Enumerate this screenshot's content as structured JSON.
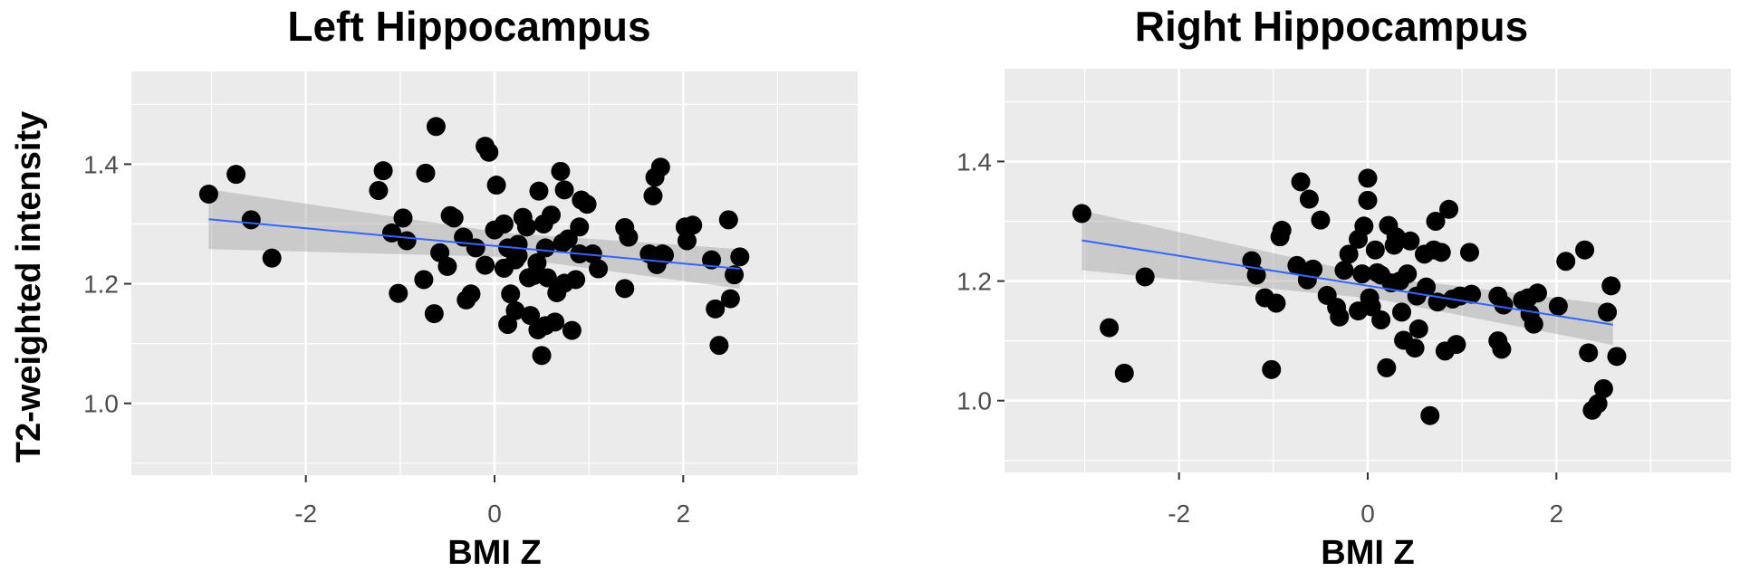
{
  "chart_data": [
    {
      "type": "scatter",
      "title": "Left Hippocampus",
      "xlabel": "BMI Z",
      "ylabel": "T2-weighted intensity",
      "xlim": [
        -3.85,
        3.85
      ],
      "ylim": [
        0.88,
        1.555
      ],
      "xticks": [
        -2,
        0,
        2
      ],
      "xtick_labels": [
        "-2",
        "0",
        "2"
      ],
      "yticks": [
        1.0,
        1.2,
        1.4
      ],
      "ytick_labels": [
        "1.0",
        "1.2",
        "1.4"
      ],
      "grid": true,
      "colors": {
        "points": "#000000",
        "fit_line": "#3366ff",
        "ci_band": "#999999",
        "panel_bg": "#ebebeb"
      },
      "fit": {
        "x": [
          -3.03,
          2.6
        ],
        "y": [
          1.308,
          1.225
        ]
      },
      "ci": {
        "x": [
          -3.03,
          0.1,
          2.6
        ],
        "upper": [
          1.358,
          1.285,
          1.258
        ],
        "lower": [
          1.258,
          1.245,
          1.192
        ]
      },
      "points": {
        "x": [
          -3.03,
          -2.74,
          -2.58,
          -2.36,
          -1.23,
          -1.18,
          -1.09,
          -1.02,
          -0.97,
          -0.93,
          -0.75,
          -0.73,
          -0.64,
          -0.62,
          -0.58,
          -0.5,
          -0.47,
          -0.43,
          -0.33,
          -0.3,
          -0.25,
          -0.2,
          -0.1,
          -0.1,
          -0.06,
          0.0,
          0.02,
          0.1,
          0.1,
          0.14,
          0.14,
          0.17,
          0.22,
          0.22,
          0.25,
          0.25,
          0.3,
          0.34,
          0.36,
          0.38,
          0.42,
          0.45,
          0.46,
          0.47,
          0.5,
          0.52,
          0.54,
          0.54,
          0.56,
          0.6,
          0.64,
          0.66,
          0.7,
          0.72,
          0.74,
          0.74,
          0.78,
          0.82,
          0.86,
          0.9,
          0.9,
          0.92,
          0.98,
          1.04,
          1.1,
          1.38,
          1.38,
          1.42,
          1.64,
          1.68,
          1.7,
          1.72,
          1.76,
          1.78,
          1.8,
          2.02,
          2.04,
          2.1,
          2.3,
          2.34,
          2.38,
          2.48,
          2.5,
          2.54,
          2.6
        ],
        "y": [
          1.35,
          1.383,
          1.307,
          1.243,
          1.356,
          1.389,
          1.285,
          1.184,
          1.31,
          1.272,
          1.207,
          1.385,
          1.15,
          1.463,
          1.252,
          1.229,
          1.314,
          1.31,
          1.278,
          1.173,
          1.183,
          1.26,
          1.43,
          1.231,
          1.42,
          1.29,
          1.365,
          1.226,
          1.3,
          1.26,
          1.132,
          1.183,
          1.24,
          1.155,
          1.247,
          1.266,
          1.311,
          1.295,
          1.21,
          1.147,
          1.214,
          1.235,
          1.123,
          1.355,
          1.08,
          1.3,
          1.13,
          1.26,
          1.21,
          1.315,
          1.136,
          1.185,
          1.388,
          1.268,
          1.357,
          1.201,
          1.275,
          1.122,
          1.207,
          1.295,
          1.25,
          1.34,
          1.333,
          1.25,
          1.225,
          1.192,
          1.294,
          1.278,
          1.25,
          1.347,
          1.378,
          1.232,
          1.395,
          1.25,
          1.248,
          1.295,
          1.272,
          1.298,
          1.24,
          1.158,
          1.097,
          1.307,
          1.175,
          1.215,
          1.245
        ]
      }
    },
    {
      "type": "scatter",
      "title": "Right Hippocampus",
      "xlabel": "BMI Z",
      "ylabel": "",
      "xlim": [
        -3.85,
        3.85
      ],
      "ylim": [
        0.88,
        1.555
      ],
      "xticks": [
        -2,
        0,
        2
      ],
      "xtick_labels": [
        "-2",
        "0",
        "2"
      ],
      "yticks": [
        1.0,
        1.2,
        1.4
      ],
      "ytick_labels": [
        "1.0",
        "1.2",
        "1.4"
      ],
      "grid": true,
      "colors": {
        "points": "#000000",
        "fit_line": "#3366ff",
        "ci_band": "#999999",
        "panel_bg": "#ebebeb"
      },
      "fit": {
        "x": [
          -3.03,
          2.6
        ],
        "y": [
          1.268,
          1.127
        ]
      },
      "ci": {
        "x": [
          -3.03,
          0.1,
          2.6
        ],
        "upper": [
          1.318,
          1.208,
          1.16
        ],
        "lower": [
          1.218,
          1.17,
          1.093
        ]
      },
      "points": {
        "x": [
          -3.03,
          -2.74,
          -2.58,
          -2.36,
          -1.23,
          -1.18,
          -1.09,
          -1.02,
          -0.97,
          -0.93,
          -0.91,
          -0.75,
          -0.71,
          -0.64,
          -0.62,
          -0.58,
          -0.5,
          -0.43,
          -0.33,
          -0.3,
          -0.25,
          -0.2,
          -0.1,
          -0.1,
          -0.06,
          -0.04,
          0.0,
          0.0,
          0.02,
          0.04,
          0.08,
          0.1,
          0.14,
          0.14,
          0.2,
          0.22,
          0.25,
          0.28,
          0.3,
          0.34,
          0.36,
          0.38,
          0.42,
          0.45,
          0.5,
          0.52,
          0.54,
          0.6,
          0.62,
          0.66,
          0.7,
          0.72,
          0.74,
          0.78,
          0.82,
          0.86,
          0.9,
          0.94,
          0.98,
          1.08,
          1.1,
          1.38,
          1.38,
          1.42,
          1.44,
          1.64,
          1.7,
          1.72,
          1.76,
          1.8,
          2.02,
          2.1,
          2.3,
          2.34,
          2.38,
          2.44,
          2.5,
          2.54,
          2.58,
          2.64
        ],
        "y": [
          1.313,
          1.122,
          1.046,
          1.207,
          1.234,
          1.21,
          1.172,
          1.052,
          1.163,
          1.274,
          1.285,
          1.226,
          1.366,
          1.202,
          1.337,
          1.22,
          1.302,
          1.176,
          1.156,
          1.14,
          1.218,
          1.245,
          1.27,
          1.15,
          1.212,
          1.292,
          1.372,
          1.335,
          1.172,
          1.157,
          1.252,
          1.214,
          1.21,
          1.135,
          1.055,
          1.293,
          1.197,
          1.26,
          1.274,
          1.2,
          1.148,
          1.101,
          1.212,
          1.267,
          1.088,
          1.175,
          1.12,
          1.245,
          1.19,
          0.975,
          1.252,
          1.3,
          1.165,
          1.248,
          1.083,
          1.32,
          1.17,
          1.094,
          1.175,
          1.248,
          1.178,
          1.175,
          1.1,
          1.086,
          1.16,
          1.168,
          1.172,
          1.145,
          1.128,
          1.18,
          1.158,
          1.233,
          1.252,
          1.08,
          0.984,
          0.995,
          1.02,
          1.148,
          1.192,
          1.074
        ]
      }
    }
  ]
}
